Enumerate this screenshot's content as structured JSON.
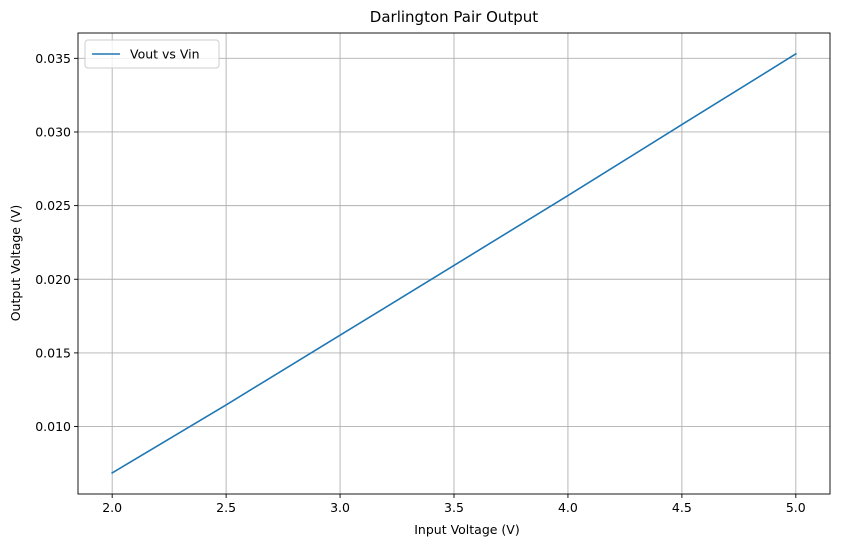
{
  "chart_data": {
    "type": "line",
    "title": "Darlington Pair Output",
    "xlabel": "Input Voltage (V)",
    "ylabel": "Output Voltage (V)",
    "xlim": [
      1.85,
      5.15
    ],
    "ylim": [
      0.00542,
      0.03672
    ],
    "x_ticks": [
      2.0,
      2.5,
      3.0,
      3.5,
      4.0,
      4.5,
      5.0
    ],
    "x_tick_labels": [
      "2.0",
      "2.5",
      "3.0",
      "3.5",
      "4.0",
      "4.5",
      "5.0"
    ],
    "y_ticks": [
      0.01,
      0.015,
      0.02,
      0.025,
      0.03,
      0.035
    ],
    "y_tick_labels": [
      "0.010",
      "0.015",
      "0.020",
      "0.025",
      "0.030",
      "0.035"
    ],
    "grid": true,
    "legend_position": "upper-left",
    "series": [
      {
        "name": "Vout vs Vin",
        "color": "#1f77b4",
        "x": [
          2.0,
          2.5,
          3.0,
          3.5,
          4.0,
          4.5,
          5.0
        ],
        "y": [
          0.00685,
          0.01147,
          0.0162,
          0.02094,
          0.02568,
          0.0305,
          0.0353
        ]
      }
    ]
  }
}
